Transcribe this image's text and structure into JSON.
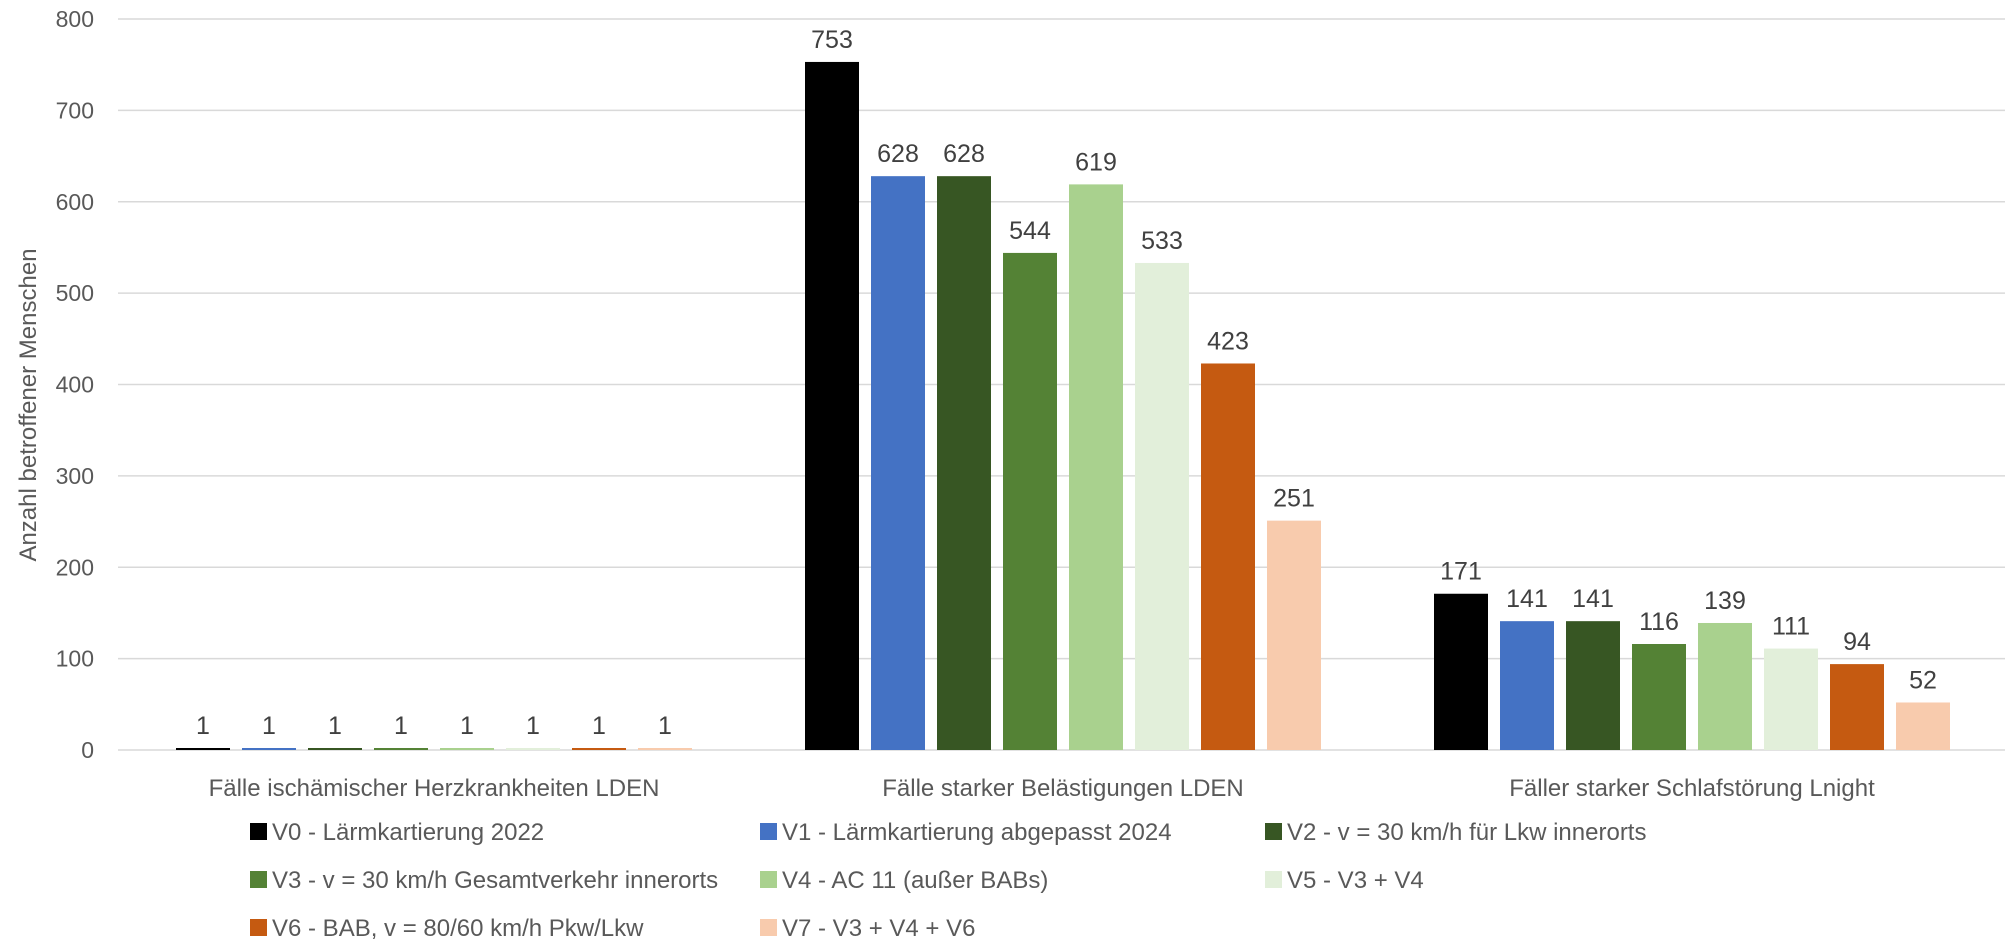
{
  "chart_data": {
    "type": "bar",
    "title": "",
    "xlabel": "",
    "ylabel": "Anzahl betroffener Menschen",
    "ylim": [
      0,
      800
    ],
    "yticks": [
      0,
      100,
      200,
      300,
      400,
      500,
      600,
      700,
      800
    ],
    "grid": true,
    "legend_position": "bottom",
    "categories": [
      "Fälle ischämischer Herzkrankheiten LDEN",
      "Fälle starker Belästigungen LDEN",
      "Fäller starker Schlafstörung Lnight"
    ],
    "series": [
      {
        "name": "V0 - Lärmkartierung 2022",
        "color": "#000000",
        "values": [
          1,
          753,
          171
        ]
      },
      {
        "name": "V1 - Lärmkartierung abgepasst 2024",
        "color": "#4472C4",
        "values": [
          1,
          628,
          141
        ]
      },
      {
        "name": "V2 - v = 30 km/h für Lkw innerorts",
        "color": "#375623",
        "values": [
          1,
          628,
          141
        ]
      },
      {
        "name": "V3 - v = 30 km/h Gesamtverkehr innerorts",
        "color": "#548235",
        "values": [
          1,
          544,
          116
        ]
      },
      {
        "name": "V4 - AC 11 (außer BABs)",
        "color": "#A9D18E",
        "values": [
          1,
          619,
          139
        ]
      },
      {
        "name": "V5 - V3 + V4",
        "color": "#E2EFDA",
        "values": [
          1,
          533,
          111
        ]
      },
      {
        "name": "V6 - BAB, v = 80/60 km/h Pkw/Lkw",
        "color": "#C55A11",
        "values": [
          1,
          423,
          94
        ]
      },
      {
        "name": "V7 - V3 + V4 + V6",
        "color": "#F8CBAD",
        "values": [
          1,
          251,
          52
        ]
      }
    ]
  }
}
